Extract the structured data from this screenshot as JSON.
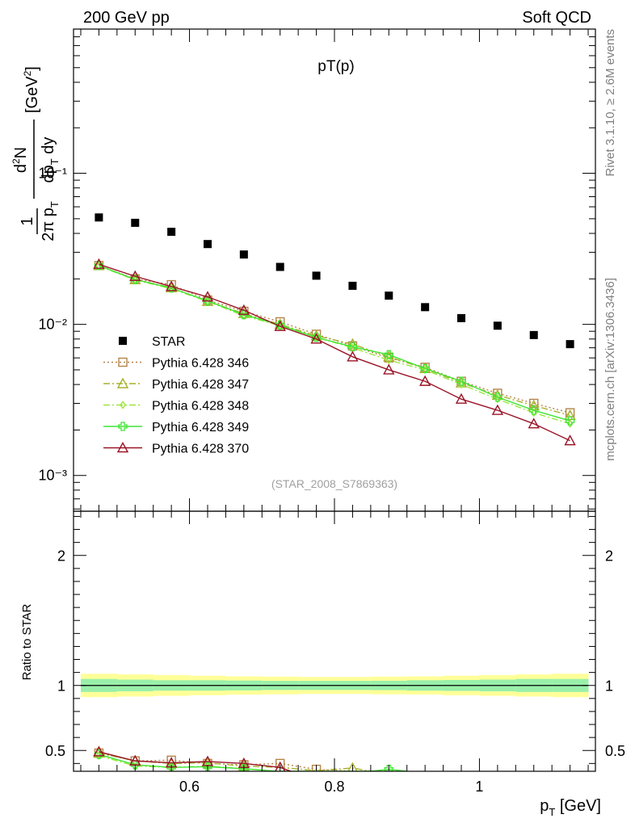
{
  "header": {
    "left": "200 GeV pp",
    "right": "Soft QCD",
    "plot_title": "pT(p)",
    "side_top": "Rivet 3.1.10, ≥ 2.6M events",
    "side_bottom": "mcplots.cern.ch [arXiv:1306.3436]",
    "analysis": "(STAR_2008_S7869363)"
  },
  "chart_data": [
    {
      "type": "scatter",
      "panel": "main",
      "ylabel": "1/(2π pT) d²N/(dpT dy) [GeV²]",
      "yscale": "log",
      "xlim": [
        0.44,
        1.16
      ],
      "ylim": [
        0.00058,
        0.9
      ],
      "y_tick_labels": [
        "10⁻³",
        "10⁻²",
        "10⁻¹"
      ],
      "legend_position": "lower-left",
      "x": [
        0.475,
        0.525,
        0.575,
        0.625,
        0.675,
        0.725,
        0.775,
        0.825,
        0.875,
        0.925,
        0.975,
        1.025,
        1.075,
        1.125
      ],
      "series": [
        {
          "name": "STAR",
          "color": "#000000",
          "marker": "square-filled",
          "line": "none",
          "values": [
            0.051,
            0.047,
            0.041,
            0.034,
            0.029,
            0.024,
            0.021,
            0.018,
            0.0155,
            0.013,
            0.011,
            0.0098,
            0.0085,
            0.0074
          ]
        },
        {
          "name": "Pythia 6.428 346",
          "color": "#b5844a",
          "marker": "square-open",
          "line": "dotted",
          "values": [
            0.0245,
            0.02,
            0.0183,
            0.0145,
            0.0122,
            0.0104,
            0.0086,
            0.0072,
            0.006,
            0.0052,
            0.0042,
            0.0035,
            0.003,
            0.0026
          ]
        },
        {
          "name": "Pythia 6.428 347",
          "color": "#a8b02c",
          "marker": "triangle-open",
          "line": "dashdot",
          "values": [
            0.0245,
            0.0198,
            0.0175,
            0.0142,
            0.0118,
            0.01,
            0.0084,
            0.0074,
            0.0061,
            0.0051,
            0.0041,
            0.0034,
            0.0029,
            0.0025
          ]
        },
        {
          "name": "Pythia 6.428 348",
          "color": "#9ce640",
          "marker": "diamond-open",
          "line": "dashdot",
          "values": [
            0.0243,
            0.0197,
            0.0172,
            0.0142,
            0.0114,
            0.0098,
            0.0082,
            0.007,
            0.0058,
            0.005,
            0.004,
            0.0032,
            0.0026,
            0.0022
          ]
        },
        {
          "name": "Pythia 6.428 349",
          "color": "#3fe632",
          "marker": "cross-open",
          "line": "solid",
          "values": [
            0.0245,
            0.0198,
            0.0174,
            0.0143,
            0.0116,
            0.0099,
            0.0082,
            0.0071,
            0.0063,
            0.0051,
            0.0042,
            0.0033,
            0.0027,
            0.0023
          ]
        },
        {
          "name": "Pythia 6.428 370",
          "color": "#9a1426",
          "marker": "triangle-open",
          "line": "solid",
          "values": [
            0.025,
            0.0208,
            0.0178,
            0.0152,
            0.0124,
            0.0097,
            0.008,
            0.0061,
            0.005,
            0.0042,
            0.0032,
            0.0027,
            0.0022,
            0.0017
          ]
        }
      ]
    },
    {
      "type": "line",
      "panel": "ratio",
      "ylabel": "Ratio to STAR",
      "xlabel": "p_T [GeV]",
      "xlim": [
        0.44,
        1.16
      ],
      "ylim": [
        0.34,
        2.34
      ],
      "x_tick_labels": [
        "0.6",
        "0.8",
        "1"
      ],
      "y_tick_labels": [
        "0.5",
        "1",
        "2"
      ],
      "band_edges": [
        0.45,
        0.5,
        0.55,
        0.6,
        0.65,
        0.7,
        0.75,
        0.8,
        0.85,
        0.9,
        0.95,
        1.0,
        1.05,
        1.1,
        1.15
      ],
      "band_outer": [
        0.09,
        0.085,
        0.08,
        0.075,
        0.07,
        0.068,
        0.065,
        0.065,
        0.068,
        0.07,
        0.075,
        0.08,
        0.085,
        0.09
      ],
      "band_inner": [
        0.05,
        0.045,
        0.04,
        0.04,
        0.038,
        0.035,
        0.035,
        0.035,
        0.036,
        0.04,
        0.042,
        0.045,
        0.05,
        0.05
      ],
      "series": [
        {
          "name": "Pythia 6.428 346",
          "color": "#b5844a",
          "marker": "square-open",
          "line": "dotted",
          "x": [
            0.475,
            0.525,
            0.575,
            0.625,
            0.675,
            0.725,
            0.775,
            0.825
          ],
          "values": [
            0.48,
            0.42,
            0.425,
            0.4,
            0.39,
            0.4,
            0.355,
            0.34
          ]
        },
        {
          "name": "Pythia 6.428 347",
          "color": "#a8b02c",
          "marker": "triangle-open",
          "line": "dashdot",
          "x": [
            0.475,
            0.525,
            0.575,
            0.625,
            0.675,
            0.725,
            0.775,
            0.825,
            0.85
          ],
          "values": [
            0.48,
            0.42,
            0.4,
            0.405,
            0.38,
            0.37,
            0.345,
            0.365,
            0.34
          ]
        },
        {
          "name": "Pythia 6.428 348",
          "color": "#9ce640",
          "marker": "diamond-open",
          "line": "dashdot",
          "x": [
            0.475,
            0.525,
            0.575,
            0.625,
            0.675,
            0.72
          ],
          "values": [
            0.46,
            0.38,
            0.37,
            0.38,
            0.36,
            0.34
          ]
        },
        {
          "name": "Pythia 6.428 349",
          "color": "#3fe632",
          "marker": "cross-open",
          "line": "solid",
          "x": [
            0.475,
            0.525,
            0.575,
            0.625,
            0.675,
            0.72,
            0.85,
            0.875,
            0.9
          ],
          "values": [
            0.47,
            0.39,
            0.37,
            0.375,
            0.36,
            0.34,
            0.34,
            0.355,
            0.34
          ]
        },
        {
          "name": "Pythia 6.428 370",
          "color": "#9a1426",
          "marker": "triangle-open",
          "line": "solid",
          "x": [
            0.475,
            0.525,
            0.575,
            0.625,
            0.675,
            0.725,
            0.74
          ],
          "values": [
            0.49,
            0.42,
            0.405,
            0.415,
            0.4,
            0.37,
            0.34
          ]
        }
      ]
    }
  ]
}
